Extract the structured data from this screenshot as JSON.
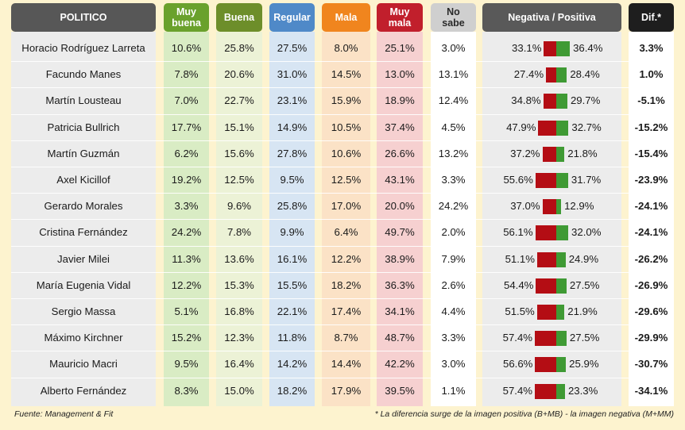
{
  "headers": {
    "politico": "POLITICO",
    "muy_buena": "Muy\nbuena",
    "buena": "Buena",
    "regular": "Regular",
    "mala": "Mala",
    "muy_mala": "Muy\nmala",
    "no_sabe": "No\nsabe",
    "neg_pos": "Negativa / Positiva",
    "dif": "Dif.*"
  },
  "colors": {
    "politico_header": "#575757",
    "politico_col": "#ececec",
    "muy_buena_header": "#6aa12c",
    "muy_buena_col": "#d9ecc4",
    "buena_header": "#6d8e2a",
    "buena_col": "#ecf2d6",
    "regular_header": "#4f89c8",
    "regular_col": "#d7e5f3",
    "mala_header": "#f0851e",
    "mala_col": "#fbe2c6",
    "muy_mala_header": "#c11f2c",
    "muy_mala_col": "#f6d0d0",
    "no_sabe_header": "#cfcfcf",
    "no_sabe_col": "#ffffff",
    "neg_pos_header": "#595959",
    "neg_pos_col": "#ececec",
    "dif_header": "#1e1e1e",
    "dif_col": "#ffffff",
    "negative_bar": "#b40d14",
    "positive_bar": "#3f9a34"
  },
  "chart_data": {
    "type": "table",
    "columns": [
      "POLITICO",
      "Muy buena",
      "Buena",
      "Regular",
      "Mala",
      "Muy mala",
      "No sabe",
      "Negativa / Positiva",
      "Dif.*"
    ],
    "rows": [
      {
        "name": "Horacio Rodríguez Larreta",
        "muy_buena": "10.6%",
        "buena": "25.8%",
        "regular": "27.5%",
        "mala": "8.0%",
        "muy_mala": "25.1%",
        "no_sabe": "3.0%",
        "negativa": "33.1%",
        "positiva": "36.4%",
        "neg": 33.1,
        "pos": 36.4,
        "dif": "3.3%"
      },
      {
        "name": "Facundo Manes",
        "muy_buena": "7.8%",
        "buena": "20.6%",
        "regular": "31.0%",
        "mala": "14.5%",
        "muy_mala": "13.0%",
        "no_sabe": "13.1%",
        "negativa": "27.4%",
        "positiva": "28.4%",
        "neg": 27.4,
        "pos": 28.4,
        "dif": "1.0%"
      },
      {
        "name": "Martín Lousteau",
        "muy_buena": "7.0%",
        "buena": "22.7%",
        "regular": "23.1%",
        "mala": "15.9%",
        "muy_mala": "18.9%",
        "no_sabe": "12.4%",
        "negativa": "34.8%",
        "positiva": "29.7%",
        "neg": 34.8,
        "pos": 29.7,
        "dif": "-5.1%"
      },
      {
        "name": "Patricia Bullrich",
        "muy_buena": "17.7%",
        "buena": "15.1%",
        "regular": "14.9%",
        "mala": "10.5%",
        "muy_mala": "37.4%",
        "no_sabe": "4.5%",
        "negativa": "47.9%",
        "positiva": "32.7%",
        "neg": 47.9,
        "pos": 32.7,
        "dif": "-15.2%"
      },
      {
        "name": "Martín Guzmán",
        "muy_buena": "6.2%",
        "buena": "15.6%",
        "regular": "27.8%",
        "mala": "10.6%",
        "muy_mala": "26.6%",
        "no_sabe": "13.2%",
        "negativa": "37.2%",
        "positiva": "21.8%",
        "neg": 37.2,
        "pos": 21.8,
        "dif": "-15.4%"
      },
      {
        "name": "Axel Kicillof",
        "muy_buena": "19.2%",
        "buena": "12.5%",
        "regular": "9.5%",
        "mala": "12.5%",
        "muy_mala": "43.1%",
        "no_sabe": "3.3%",
        "negativa": "55.6%",
        "positiva": "31.7%",
        "neg": 55.6,
        "pos": 31.7,
        "dif": "-23.9%"
      },
      {
        "name": "Gerardo Morales",
        "muy_buena": "3.3%",
        "buena": "9.6%",
        "regular": "25.8%",
        "mala": "17.0%",
        "muy_mala": "20.0%",
        "no_sabe": "24.2%",
        "negativa": "37.0%",
        "positiva": "12.9%",
        "neg": 37.0,
        "pos": 12.9,
        "dif": "-24.1%"
      },
      {
        "name": "Cristina Fernández",
        "muy_buena": "24.2%",
        "buena": "7.8%",
        "regular": "9.9%",
        "mala": "6.4%",
        "muy_mala": "49.7%",
        "no_sabe": "2.0%",
        "negativa": "56.1%",
        "positiva": "32.0%",
        "neg": 56.1,
        "pos": 32.0,
        "dif": "-24.1%"
      },
      {
        "name": "Javier Milei",
        "muy_buena": "11.3%",
        "buena": "13.6%",
        "regular": "16.1%",
        "mala": "12.2%",
        "muy_mala": "38.9%",
        "no_sabe": "7.9%",
        "negativa": "51.1%",
        "positiva": "24.9%",
        "neg": 51.1,
        "pos": 24.9,
        "dif": "-26.2%"
      },
      {
        "name": "María Eugenia Vidal",
        "muy_buena": "12.2%",
        "buena": "15.3%",
        "regular": "15.5%",
        "mala": "18.2%",
        "muy_mala": "36.3%",
        "no_sabe": "2.6%",
        "negativa": "54.4%",
        "positiva": "27.5%",
        "neg": 54.4,
        "pos": 27.5,
        "dif": "-26.9%"
      },
      {
        "name": "Sergio Massa",
        "muy_buena": "5.1%",
        "buena": "16.8%",
        "regular": "22.1%",
        "mala": "17.4%",
        "muy_mala": "34.1%",
        "no_sabe": "4.4%",
        "negativa": "51.5%",
        "positiva": "21.9%",
        "neg": 51.5,
        "pos": 21.9,
        "dif": "-29.6%"
      },
      {
        "name": "Máximo Kirchner",
        "muy_buena": "15.2%",
        "buena": "12.3%",
        "regular": "11.8%",
        "mala": "8.7%",
        "muy_mala": "48.7%",
        "no_sabe": "3.3%",
        "negativa": "57.4%",
        "positiva": "27.5%",
        "neg": 57.4,
        "pos": 27.5,
        "dif": "-29.9%"
      },
      {
        "name": "Mauricio Macri",
        "muy_buena": "9.5%",
        "buena": "16.4%",
        "regular": "14.2%",
        "mala": "14.4%",
        "muy_mala": "42.2%",
        "no_sabe": "3.0%",
        "negativa": "56.6%",
        "positiva": "25.9%",
        "neg": 56.6,
        "pos": 25.9,
        "dif": "-30.7%"
      },
      {
        "name": "Alberto Fernández",
        "muy_buena": "8.3%",
        "buena": "15.0%",
        "regular": "18.2%",
        "mala": "17.9%",
        "muy_mala": "39.5%",
        "no_sabe": "1.1%",
        "negativa": "57.4%",
        "positiva": "23.3%",
        "neg": 57.4,
        "pos": 23.3,
        "dif": "-34.1%"
      }
    ]
  },
  "footer": {
    "source": "Fuente: Management & Fit",
    "note": "* La diferencia surge de la imagen positiva (B+MB) - la imagen negativa (M+MM)"
  }
}
